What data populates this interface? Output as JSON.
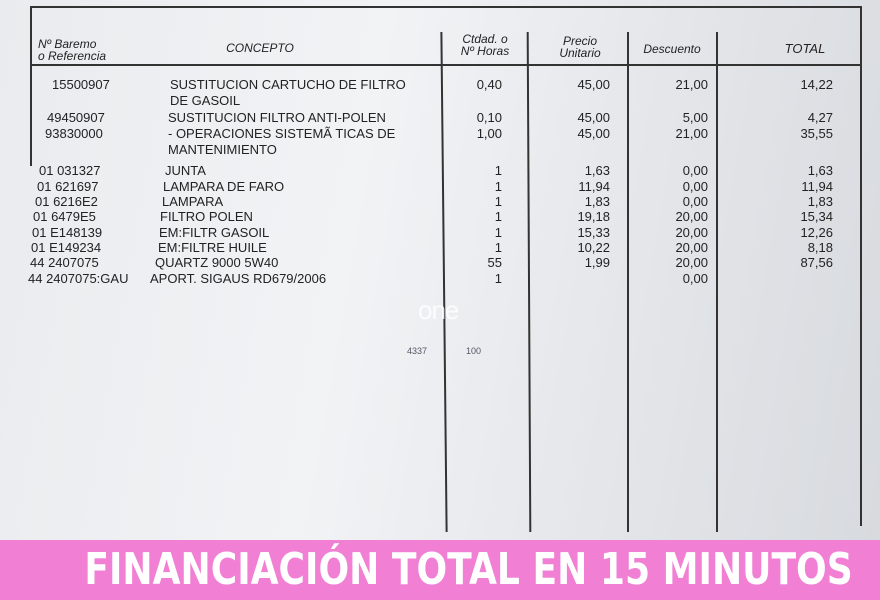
{
  "headers": {
    "ref": "Nº Baremo\no Referencia",
    "concepto": "CONCEPTO",
    "ctdad": "Ctdad. o\nNº Horas",
    "precio": "Precio\nUnitario",
    "descuento": "Descuento",
    "total": "TOTAL"
  },
  "rows": [
    {
      "ref": "15500907",
      "concepto": "SUSTITUCION CARTUCHO DE FILTRO",
      "ctdad": "0,40",
      "precio": "45,00",
      "descuento": "21,00",
      "total": "14,22"
    },
    {
      "ref": "",
      "concepto": "DE GASOIL",
      "ctdad": "",
      "precio": "",
      "descuento": "",
      "total": ""
    },
    {
      "ref": "49450907",
      "concepto": "SUSTITUCION FILTRO ANTI-POLEN",
      "ctdad": "0,10",
      "precio": "45,00",
      "descuento": "5,00",
      "total": "4,27"
    },
    {
      "ref": "93830000",
      "concepto": "- OPERACIONES SISTEMÃ  TICAS DE",
      "ctdad": "1,00",
      "precio": "45,00",
      "descuento": "21,00",
      "total": "35,55"
    },
    {
      "ref": "",
      "concepto": "MANTENIMIENTO",
      "ctdad": "",
      "precio": "",
      "descuento": "",
      "total": ""
    },
    {
      "ref": "01  031327",
      "concepto": "JUNTA",
      "ctdad": "1",
      "precio": "1,63",
      "descuento": "0,00",
      "total": "1,63"
    },
    {
      "ref": "01  621697",
      "concepto": "LAMPARA DE FARO",
      "ctdad": "1",
      "precio": "11,94",
      "descuento": "0,00",
      "total": "11,94"
    },
    {
      "ref": "01  6216E2",
      "concepto": "LAMPARA",
      "ctdad": "1",
      "precio": "1,83",
      "descuento": "0,00",
      "total": "1,83"
    },
    {
      "ref": "01  6479E5",
      "concepto": "FILTRO POLEN",
      "ctdad": "1",
      "precio": "19,18",
      "descuento": "20,00",
      "total": "15,34"
    },
    {
      "ref": "01  E148139",
      "concepto": "EM:FILTR GASOIL",
      "ctdad": "1",
      "precio": "15,33",
      "descuento": "20,00",
      "total": "12,26"
    },
    {
      "ref": "01  E149234",
      "concepto": "EM:FILTRE HUILE",
      "ctdad": "1",
      "precio": "10,22",
      "descuento": "20,00",
      "total": "8,18"
    },
    {
      "ref": "44  2407075",
      "concepto": "QUARTZ 9000 5W40",
      "ctdad": "55",
      "precio": "1,99",
      "descuento": "20,00",
      "total": "87,56"
    },
    {
      "ref": "44  2407075:GAU",
      "concepto": "APORT. SIGAUS RD679/2006",
      "ctdad": "1",
      "precio": "",
      "descuento": "0,00",
      "total": ""
    }
  ],
  "stamp": {
    "a": "4337",
    "b": "100"
  },
  "watermark": "one",
  "banner": "FINANCIACIÓN TOTAL EN 15 MINUTOS",
  "colors": {
    "banner": "#f17fd3"
  }
}
